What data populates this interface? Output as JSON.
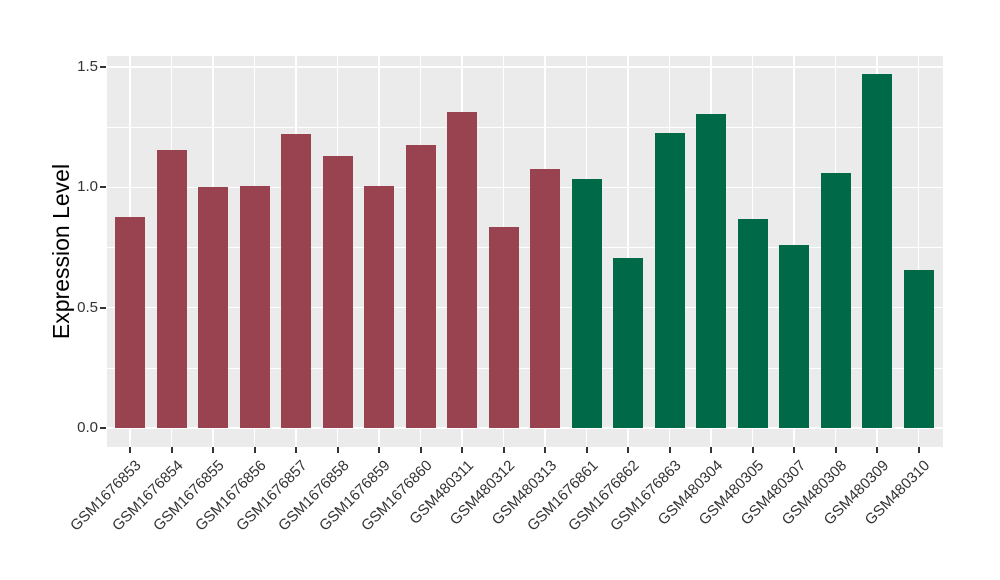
{
  "chart_data": {
    "type": "bar",
    "title": "",
    "xlabel": "",
    "ylabel": "Expression Level",
    "categories": [
      "GSM1676853",
      "GSM1676854",
      "GSM1676855",
      "GSM1676856",
      "GSM1676857",
      "GSM1676858",
      "GSM1676859",
      "GSM1676860",
      "GSM480311",
      "GSM480312",
      "GSM480313",
      "GSM1676861",
      "GSM1676862",
      "GSM1676863",
      "GSM480304",
      "GSM480305",
      "GSM480307",
      "GSM480308",
      "GSM480309",
      "GSM480310"
    ],
    "values": [
      0.875,
      1.155,
      1.0,
      1.005,
      1.22,
      1.13,
      1.005,
      1.175,
      1.315,
      0.835,
      1.075,
      1.035,
      0.705,
      1.225,
      1.305,
      0.87,
      0.76,
      1.06,
      1.47,
      0.655
    ],
    "bar_groups": [
      "group1",
      "group1",
      "group1",
      "group1",
      "group1",
      "group1",
      "group1",
      "group1",
      "group1",
      "group1",
      "group1",
      "group2",
      "group2",
      "group2",
      "group2",
      "group2",
      "group2",
      "group2",
      "group2",
      "group2"
    ],
    "group_colors": {
      "group1": "#9A4350",
      "group2": "#006A48"
    },
    "yticks": [
      0,
      0.5,
      1,
      1.5
    ],
    "ytick_labels": [
      "0.0",
      "0.5",
      "1.0",
      "1.5"
    ],
    "minor_yticks": [
      0.25,
      0.75,
      1.25
    ],
    "ylim": [
      -0.075,
      1.55
    ],
    "grid": "horizontal major+minor, vertical major at each category",
    "legend_position": "none",
    "x_label_rotation_deg": 45,
    "colors": {
      "panel_bg": "#EBEBEB",
      "grid": "#FFFFFF",
      "axis_text": "#333333",
      "axis_title": "#000000",
      "tick_mark": "#333333"
    }
  }
}
